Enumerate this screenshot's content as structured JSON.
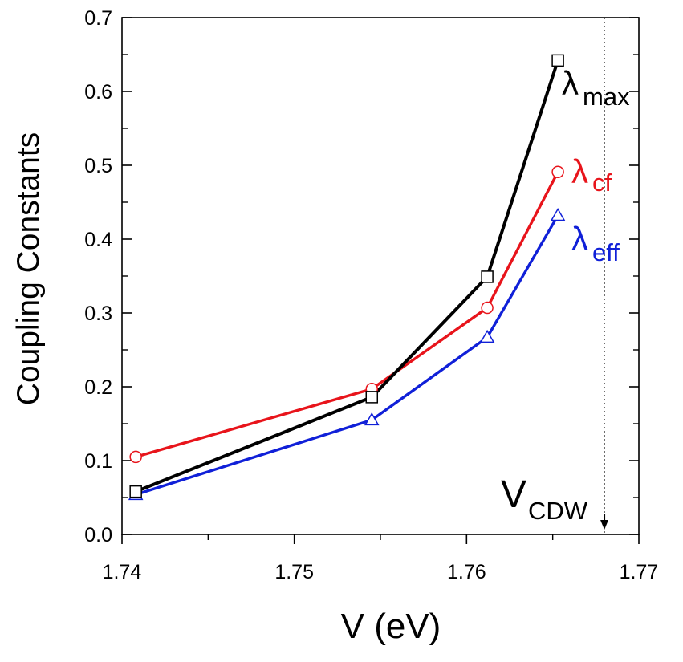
{
  "chart_data": {
    "type": "line",
    "title": "",
    "xlabel": "V (eV)",
    "ylabel": "Coupling Constants",
    "xlim": [
      1.74,
      1.77
    ],
    "ylim": [
      0.0,
      0.7
    ],
    "xticks": [
      1.74,
      1.75,
      1.76,
      1.77
    ],
    "yticks": [
      0.0,
      0.1,
      0.2,
      0.3,
      0.4,
      0.5,
      0.6,
      0.7
    ],
    "xtick_labels": [
      "1.74",
      "1.75",
      "1.76",
      "1.77"
    ],
    "ytick_labels": [
      "0.0",
      "0.1",
      "0.2",
      "0.3",
      "0.4",
      "0.5",
      "0.6",
      "0.7"
    ],
    "grid": false,
    "legend": "inline labels at right end of each series",
    "x": [
      1.7408,
      1.7545,
      1.7612,
      1.7653
    ],
    "series": [
      {
        "name": "λmax",
        "symbol": "λ",
        "subscript": "max",
        "color": "#000000",
        "marker": "square",
        "values": [
          0.058,
          0.186,
          0.349,
          0.642
        ]
      },
      {
        "name": "λcf",
        "symbol": "λ",
        "subscript": "cf",
        "color": "#e8141b",
        "marker": "circle",
        "values": [
          0.105,
          0.197,
          0.307,
          0.491
        ]
      },
      {
        "name": "λeff",
        "symbol": "λ",
        "subscript": "eff",
        "color": "#1020d8",
        "marker": "triangle",
        "values": [
          0.054,
          0.155,
          0.267,
          0.432
        ]
      }
    ],
    "annotation": {
      "label": "V",
      "subscript": "CDW",
      "x": 1.768,
      "arrow": "down to x-axis",
      "line": "dotted vertical"
    }
  }
}
